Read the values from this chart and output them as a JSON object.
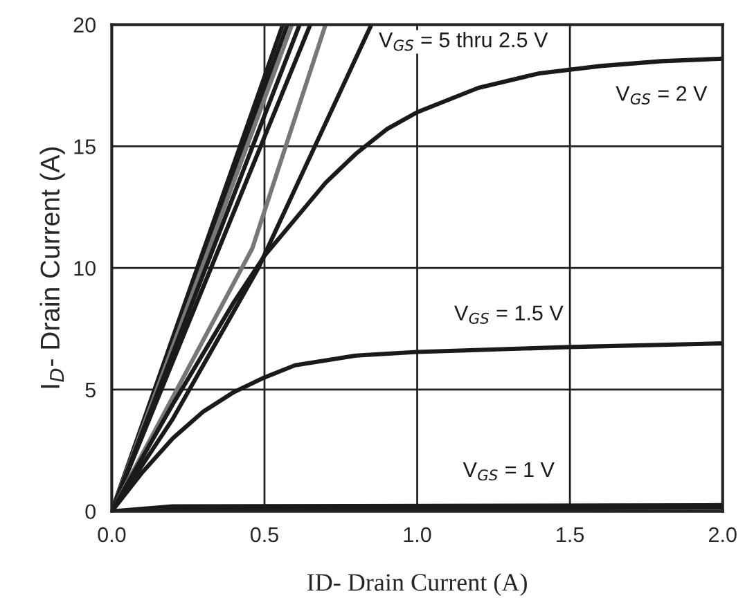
{
  "chart_data": {
    "type": "line",
    "xlabel": "ID- Drain Current (A)",
    "ylabel": "I$_{D}$- Drain Current (A)",
    "xlim": [
      0,
      2
    ],
    "ylim": [
      0,
      20
    ],
    "xticks": [
      {
        "value": 0,
        "label": "0.0"
      },
      {
        "value": 0.5,
        "label": "0.5"
      },
      {
        "value": 1,
        "label": "1.0"
      },
      {
        "value": 1.5,
        "label": "1.5"
      },
      {
        "value": 2,
        "label": "2.0"
      }
    ],
    "yticks": [
      0,
      5,
      10,
      15,
      20
    ],
    "grid": true,
    "marker": "none",
    "line_style": "solid",
    "legend": false,
    "series": [
      {
        "color": "#1a1a1a",
        "x": [
          0,
          0.56
        ],
        "values": [
          0,
          20
        ]
      },
      {
        "color": "#1a1a1a",
        "x": [
          0,
          0.575
        ],
        "values": [
          0,
          20
        ]
      },
      {
        "color": "#777777",
        "x": [
          0,
          0.59
        ],
        "values": [
          0,
          20
        ]
      },
      {
        "color": "#1a1a1a",
        "x": [
          0,
          0.615
        ],
        "values": [
          0,
          20
        ]
      },
      {
        "color": "#1a1a1a",
        "x": [
          0,
          0.65
        ],
        "values": [
          0,
          20
        ]
      },
      {
        "color": "#777777",
        "x": [
          0,
          0.46,
          0.7
        ],
        "values": [
          0,
          10.8,
          20
        ]
      },
      {
        "name": "V$_{GS}$ = 5 thru 2.5 V",
        "color": "#1a1a1a",
        "x": [
          0,
          0.2,
          0.48,
          0.85
        ],
        "values": [
          0,
          3.8,
          10,
          20
        ]
      },
      {
        "name": "V$_{GS}$ = 2 V",
        "color": "#1a1a1a",
        "x": [
          0,
          0.1,
          0.2,
          0.3,
          0.4,
          0.5,
          0.6,
          0.7,
          0.8,
          0.9,
          1.0,
          1.2,
          1.4,
          1.6,
          1.8,
          2.0
        ],
        "values": [
          0,
          2.2,
          4.4,
          6.5,
          8.6,
          10.5,
          12,
          13.5,
          14.7,
          15.7,
          16.4,
          17.4,
          18,
          18.3,
          18.5,
          18.6
        ]
      },
      {
        "name": "V$_{GS}$ = 1.5 V",
        "color": "#1a1a1a",
        "x": [
          0,
          0.1,
          0.2,
          0.3,
          0.4,
          0.5,
          0.6,
          0.7,
          0.8,
          1.0,
          1.5,
          2.0
        ],
        "values": [
          0,
          1.6,
          3.0,
          4.1,
          4.9,
          5.5,
          6.0,
          6.2,
          6.4,
          6.55,
          6.75,
          6.9
        ]
      },
      {
        "name": "V$_{GS}$ = 1 V",
        "color": "#1a1a1a",
        "x": [
          0,
          0.2,
          2.0
        ],
        "values": [
          0,
          0.2,
          0.25
        ]
      },
      {
        "color": "#1a1a1a",
        "x": [
          0,
          0.4,
          2.0
        ],
        "values": [
          0,
          0.1,
          0.15
        ]
      }
    ]
  }
}
